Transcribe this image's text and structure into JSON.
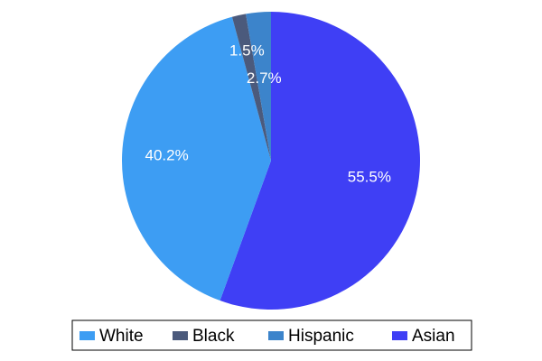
{
  "chart_data": {
    "type": "pie",
    "categories": [
      "White",
      "Black",
      "Hispanic",
      "Asian"
    ],
    "values": [
      40.2,
      1.5,
      2.7,
      55.5
    ],
    "value_labels": [
      "40.2%",
      "1.5%",
      "2.7%",
      "55.5%"
    ],
    "colors": [
      "#3d9df3",
      "#4b5a7c",
      "#3c84cb",
      "#3f3ff5"
    ],
    "legend": "bottom"
  }
}
